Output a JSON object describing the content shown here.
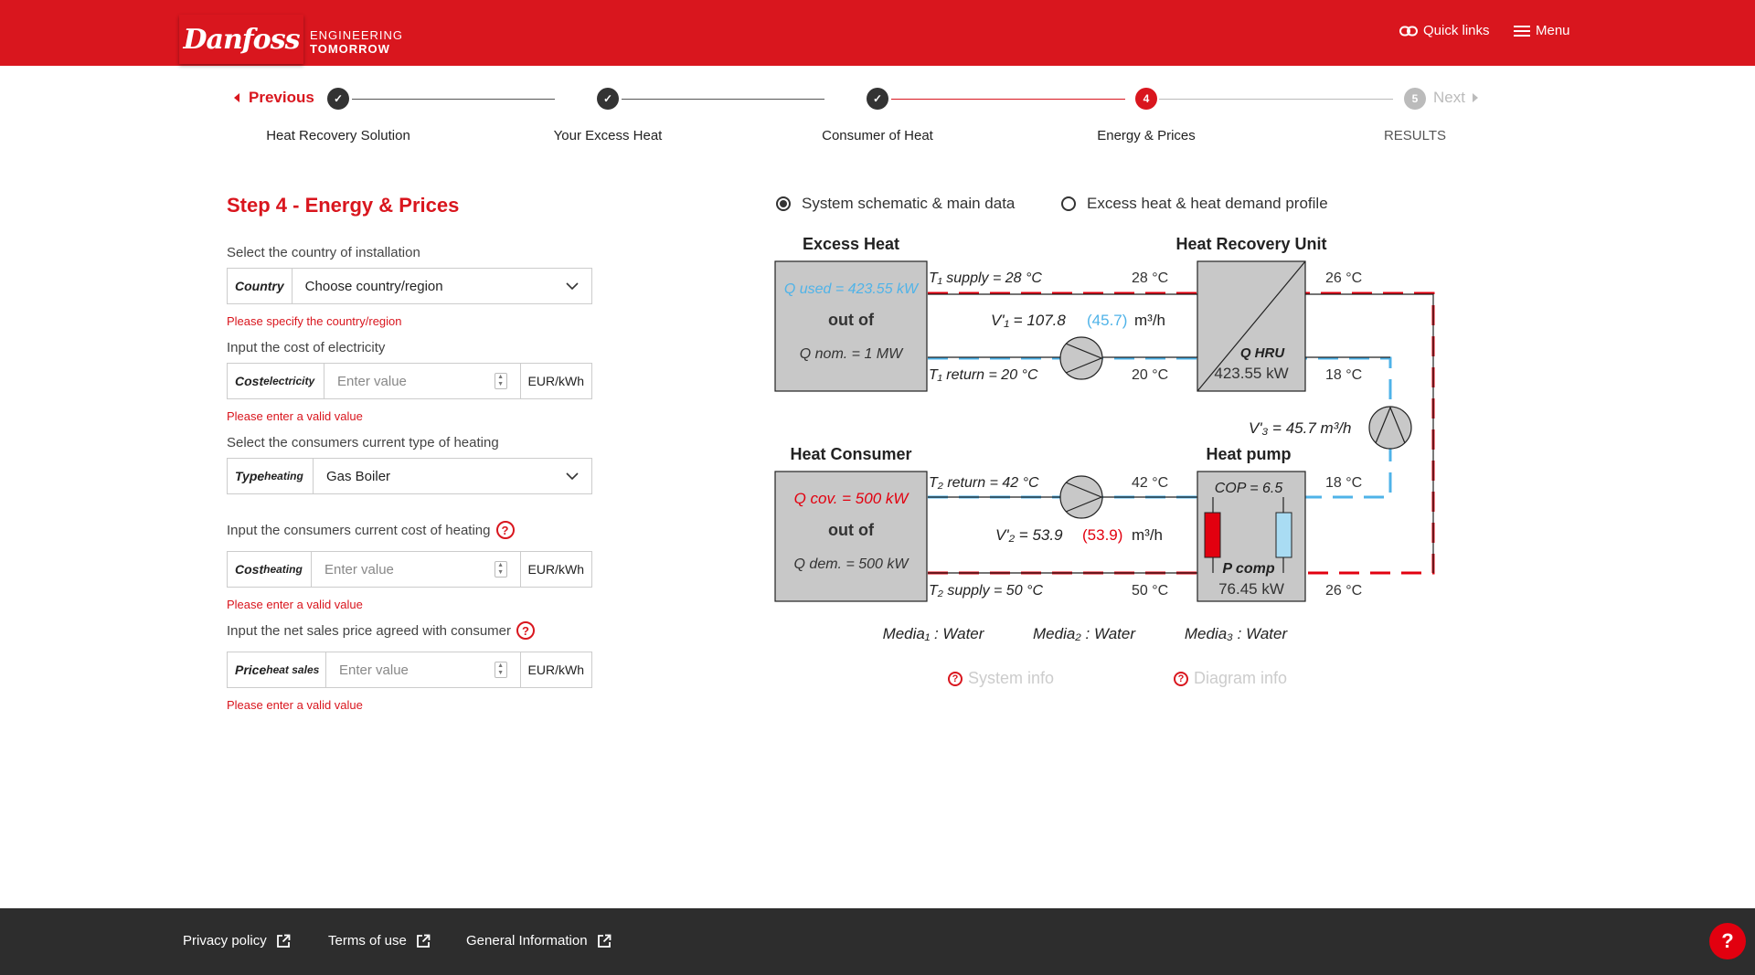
{
  "header": {
    "logo_text": "Danfoss",
    "tagline_line1": "ENGINEERING",
    "tagline_line2": "TOMORROW",
    "quick_links": "Quick links",
    "menu": "Menu"
  },
  "stepper": {
    "previous": "Previous",
    "next": "Next",
    "steps": [
      {
        "label": "Heat Recovery Solution",
        "state": "done"
      },
      {
        "label": "Your Excess Heat",
        "state": "done"
      },
      {
        "label": "Consumer of Heat",
        "state": "done"
      },
      {
        "label": "Energy & Prices",
        "state": "current",
        "number": "4"
      },
      {
        "label": "RESULTS",
        "state": "upcoming",
        "number": "5"
      }
    ]
  },
  "form": {
    "title": "Step 4 - Energy & Prices",
    "country": {
      "label": "Select the country of installation",
      "prefix": "Country",
      "value": "Choose country/region",
      "error": "Please specify the country/region"
    },
    "electricity": {
      "label": "Input the cost of electricity",
      "prefix_main": "Cost",
      "prefix_sub": "electricity",
      "placeholder": "Enter value",
      "unit": "EUR/kWh",
      "error": "Please enter a valid value"
    },
    "heating_type": {
      "label": "Select the consumers current type of heating",
      "prefix_main": "Type",
      "prefix_sub": "heating",
      "value": "Gas Boiler"
    },
    "heating_cost": {
      "label": "Input the consumers current cost of heating",
      "prefix_main": "Cost",
      "prefix_sub": "heating",
      "placeholder": "Enter value",
      "unit": "EUR/kWh",
      "error": "Please enter a valid value"
    },
    "sales_price": {
      "label": "Input the net sales price agreed with consumer",
      "prefix_main": "Price",
      "prefix_sub": "heat sales",
      "placeholder": "Enter value",
      "unit": "EUR/kWh",
      "error": "Please enter a valid value"
    }
  },
  "view_toggle": {
    "option1": "System schematic & main data",
    "option2": "Excess heat & heat demand profile",
    "selected": "option1"
  },
  "diagram": {
    "excess_heat_title": "Excess Heat",
    "hru_title": "Heat Recovery Unit",
    "consumer_title": "Heat Consumer",
    "heat_pump_title": "Heat pump",
    "q_used": "Q used  =  423.55 kW",
    "out_of": "out of",
    "q_nom": "Q nom.  =  1 MW",
    "t1_supply": "T₁ supply  =  28 °C",
    "t1_return": "T₁ return  =  20 °C",
    "v1": "V'₁  =  107.8",
    "v1_paren": "(45.7)",
    "unit_flow": "m³/h",
    "hru_t_in": "28 °C",
    "hru_t_out": "20 °C",
    "hru_t_right_top": "26 °C",
    "hru_t_right_bottom": "18 °C",
    "q_hru_label": "Q HRU",
    "q_hru_value": "423.55 kW",
    "v3": "V'₃  =  45.7 m³/h",
    "q_cov": "Q cov.  =  500 kW",
    "q_dem": "Q dem.  =  500 kW",
    "t2_return": "T₂ return  =  42 °C",
    "t2_supply": "T₂ supply  =  50 °C",
    "v2": "V'₂  =  53.9",
    "v2_paren": "(53.9)",
    "hp_t_in": "42 °C",
    "hp_t_out": "50 °C",
    "hp_t_right_top": "18 °C",
    "hp_t_right_bottom": "26 °C",
    "cop": "COP  =  6.5",
    "p_comp_label": "P comp",
    "p_comp_value": "76.45 kW",
    "media1": "Media₁ :  Water",
    "media2": "Media₂ :  Water",
    "media3": "Media₃ :  Water",
    "colors": {
      "hot": "#e2000f",
      "cold": "#4fb3e8",
      "box": "#c8c8c8"
    }
  },
  "info_links": {
    "system_info": "System info",
    "diagram_info": "Diagram info"
  },
  "footer": {
    "privacy": "Privacy policy",
    "terms": "Terms of use",
    "general": "General Information",
    "help": "?"
  }
}
